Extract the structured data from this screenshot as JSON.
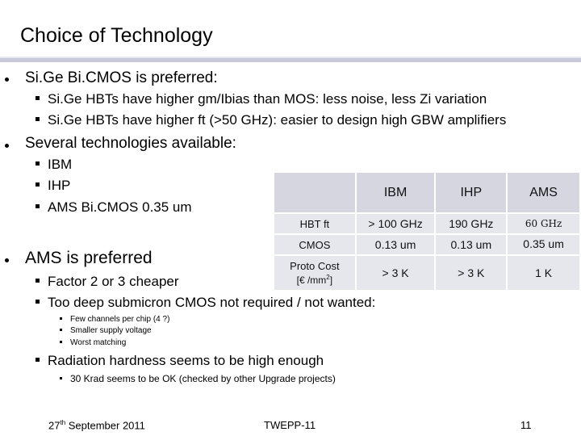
{
  "slide": {
    "title": "Choice of Technology",
    "bullets": {
      "sige_preferred": "Si.Ge Bi.CMOS is preferred:",
      "sige_sub1": "Si.Ge HBTs have higher gm/Ibias than MOS: less noise, less Zi variation",
      "sige_sub2": "Si.Ge HBTs have higher ft (>50 GHz): easier to design high GBW amplifiers",
      "several": "Several technologies available:",
      "tech1": "IBM",
      "tech2": "IHP",
      "tech3": "AMS Bi.CMOS 0.35 um",
      "ams_preferred": "AMS is preferred",
      "reason1": "Factor 2 or 3 cheaper",
      "reason2": "Too deep submicron CMOS not required / not wanted:",
      "reason2_sub1": "Few channels per chip (4 ?)",
      "reason2_sub2": "Smaller supply voltage",
      "reason2_sub3": "Worst matching",
      "reason3": "Radiation hardness seems to be high enough",
      "reason3_sub1": "30 Krad seems to be OK (checked by other Upgrade projects)"
    },
    "table": {
      "columns": [
        "IBM",
        "IHP",
        "AMS"
      ],
      "rows": [
        {
          "label": "HBT ft",
          "values": [
            "> 100 GHz",
            "190 GHz",
            "60 GHz"
          ]
        },
        {
          "label": "CMOS",
          "values": [
            "0.13 um",
            "0.13 um",
            "0.35 um"
          ]
        },
        {
          "label_line1": "Proto Cost",
          "label_line2_pre": "[€ /mm",
          "label_line2_sup": "2",
          "label_line2_post": "]",
          "values": [
            "> 3 K",
            "> 3 K",
            "1 K"
          ]
        }
      ]
    },
    "footer": {
      "date_day": "27",
      "date_suffix": "th",
      "date_rest": " September 2011",
      "event": "TWEPP-11",
      "page": "11"
    }
  }
}
